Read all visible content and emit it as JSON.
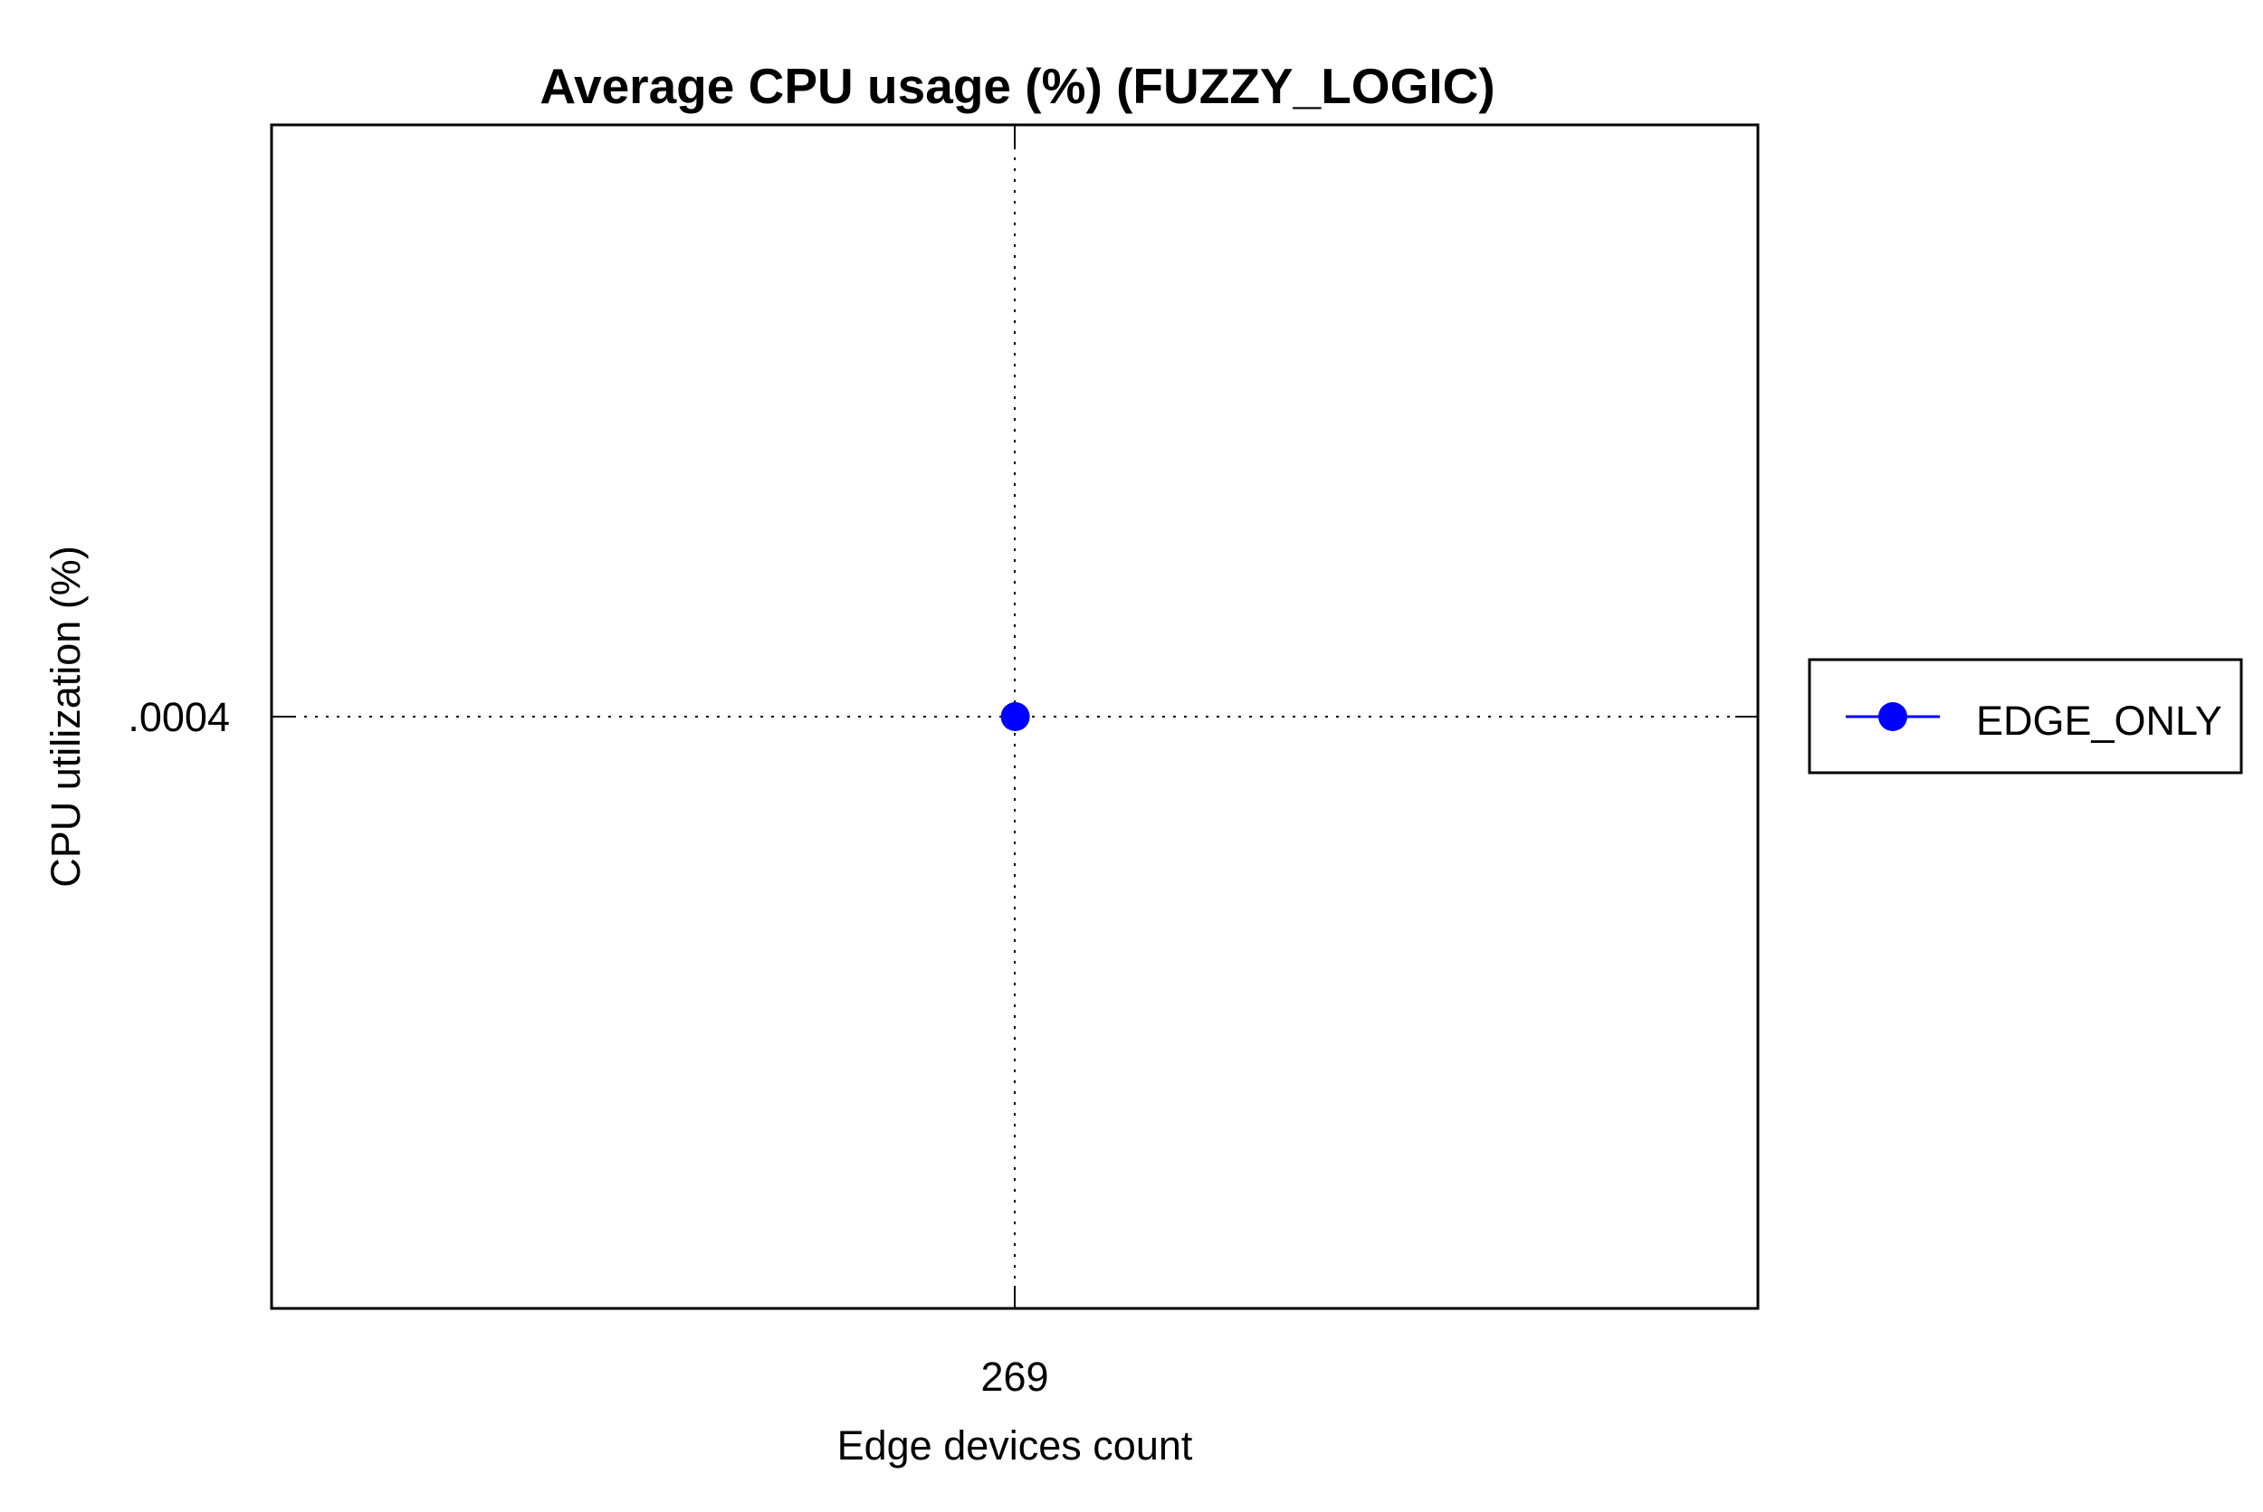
{
  "chart_data": {
    "type": "line",
    "title": "Average CPU usage (%) (FUZZY_LOGIC)",
    "xlabel": "Edge devices count",
    "ylabel": "CPU utilization (%)",
    "x_ticks": [
      "269"
    ],
    "y_ticks": [
      ".0004"
    ],
    "x": [
      269
    ],
    "series": [
      {
        "name": "EDGE_ONLY",
        "values": [
          0.0004
        ],
        "color": "#0000ff",
        "marker": "circle"
      }
    ],
    "grid": true,
    "legend_position": "right"
  }
}
